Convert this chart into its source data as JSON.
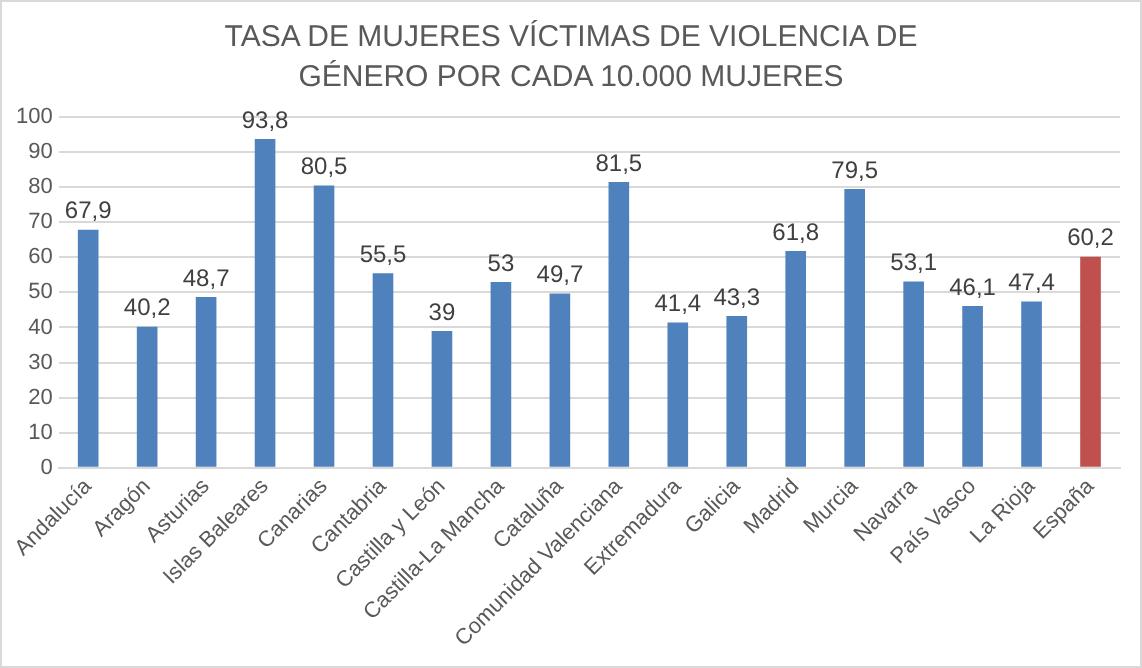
{
  "chart_data": {
    "type": "bar",
    "title": "TASA DE MUJERES VÍCTIMAS DE VIOLENCIA DE GÉNERO POR CADA 10.000 MUJERES",
    "categories": [
      "Andalucía",
      "Aragón",
      "Asturias",
      "Islas Baleares",
      "Canarias",
      "Cantabria",
      "Castilla y León",
      "Castilla-La Mancha",
      "Cataluña",
      "Comunidad Valenciana",
      "Extremadura",
      "Galicia",
      "Madrid",
      "Murcia",
      "Navarra",
      "País Vasco",
      "La Rioja",
      "España"
    ],
    "values": [
      67.9,
      40.2,
      48.7,
      93.8,
      80.5,
      55.5,
      39,
      53,
      49.7,
      81.5,
      41.4,
      43.3,
      61.8,
      79.5,
      53.1,
      46.1,
      47.4,
      60.2
    ],
    "value_labels": [
      "67,9",
      "40,2",
      "48,7",
      "93,8",
      "80,5",
      "55,5",
      "39",
      "53",
      "49,7",
      "81,5",
      "41,4",
      "43,3",
      "61,8",
      "79,5",
      "53,1",
      "46,1",
      "47,4",
      "60,2"
    ],
    "colors": [
      "#4f81bd",
      "#4f81bd",
      "#4f81bd",
      "#4f81bd",
      "#4f81bd",
      "#4f81bd",
      "#4f81bd",
      "#4f81bd",
      "#4f81bd",
      "#4f81bd",
      "#4f81bd",
      "#4f81bd",
      "#4f81bd",
      "#4f81bd",
      "#4f81bd",
      "#4f81bd",
      "#4f81bd",
      "#c0504d"
    ],
    "ylim": [
      0,
      100
    ],
    "yticks": [
      0,
      10,
      20,
      30,
      40,
      50,
      60,
      70,
      80,
      90,
      100
    ],
    "grid": "y",
    "legend": false
  }
}
